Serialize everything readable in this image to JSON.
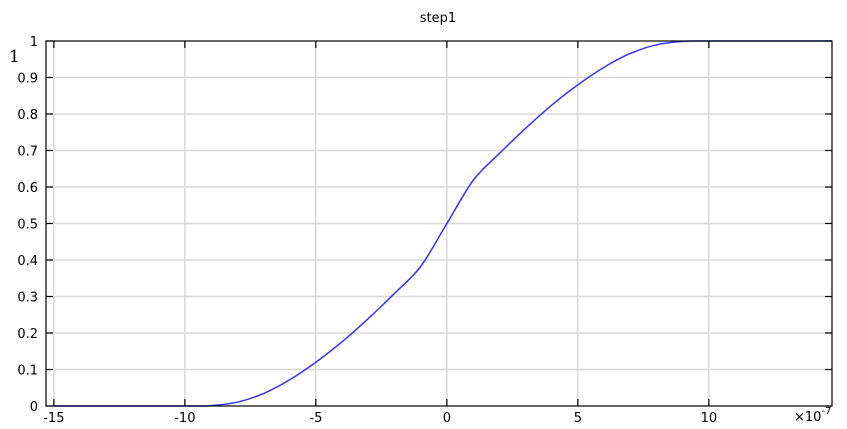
{
  "chart_data": {
    "type": "line",
    "title": "step1",
    "xlabel": "",
    "ylabel": "",
    "y_axis_marker": "1",
    "x_exponent_prefix": "×10",
    "x_exponent_power": "-7",
    "xlim": [
      -15.3,
      14.7
    ],
    "ylim": [
      0,
      1
    ],
    "xticks": [
      -15,
      -10,
      -5,
      0,
      5,
      10
    ],
    "xtick_labels": [
      "-15",
      "-10",
      "-5",
      "0",
      "5",
      "10"
    ],
    "yticks": [
      0,
      0.1,
      0.2,
      0.3,
      0.4,
      0.5,
      0.6,
      0.7,
      0.8,
      0.9,
      1
    ],
    "ytick_labels": [
      "0",
      "0.1",
      "0.2",
      "0.3",
      "0.4",
      "0.5",
      "0.6",
      "0.7",
      "0.8",
      "0.9",
      "1"
    ],
    "grid": true,
    "line_color": "#3333ff",
    "grid_color": "#d8d8d8",
    "series": [
      {
        "name": "",
        "x": [
          -15,
          -10,
          -9,
          -8,
          -7,
          -6,
          -5,
          -4,
          -3,
          -2,
          -1,
          0,
          1,
          2,
          3,
          4,
          5,
          6,
          7,
          8,
          9,
          10,
          14.7
        ],
        "y": [
          0,
          0,
          0.0011,
          0.0105,
          0.0342,
          0.0718,
          0.1199,
          0.1758,
          0.2395,
          0.3084,
          0.3822,
          0.5,
          0.6178,
          0.6916,
          0.7605,
          0.8242,
          0.8801,
          0.9282,
          0.9658,
          0.9895,
          0.9989,
          1,
          1
        ]
      }
    ]
  }
}
